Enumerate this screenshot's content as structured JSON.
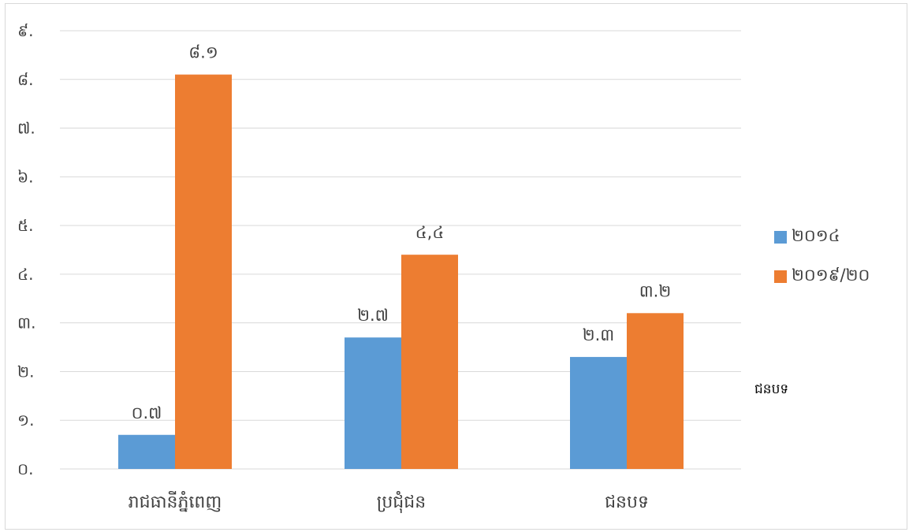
{
  "chart_data": {
    "type": "bar",
    "categories": [
      "រាជធានីភ្នំពេញ",
      "ប្រជុំជន",
      "ជនបទ"
    ],
    "series": [
      {
        "name": "២០១៤",
        "color": "#5b9bd5",
        "values": [
          0.7,
          2.7,
          2.3
        ],
        "labels": [
          "០.៧",
          "២.៧",
          "២.៣"
        ]
      },
      {
        "name": "២០១៩/២០",
        "color": "#ed7d31",
        "values": [
          8.1,
          4.4,
          3.2
        ],
        "labels": [
          "៨.១",
          "៤,៤",
          "៣.២"
        ]
      }
    ],
    "yticks": [
      {
        "value": 0,
        "label": "០."
      },
      {
        "value": 1,
        "label": "១."
      },
      {
        "value": 2,
        "label": "២."
      },
      {
        "value": 3,
        "label": "៣."
      },
      {
        "value": 4,
        "label": "៤."
      },
      {
        "value": 5,
        "label": "៥."
      },
      {
        "value": 6,
        "label": "៦."
      },
      {
        "value": 7,
        "label": "៧."
      },
      {
        "value": 8,
        "label": "៨."
      },
      {
        "value": 9,
        "label": "៩."
      }
    ],
    "ylim": [
      0,
      9
    ],
    "grid": true,
    "legend_position": "right",
    "gridline_color": "#d9d9d9"
  },
  "stray_text": "ជនបទ"
}
